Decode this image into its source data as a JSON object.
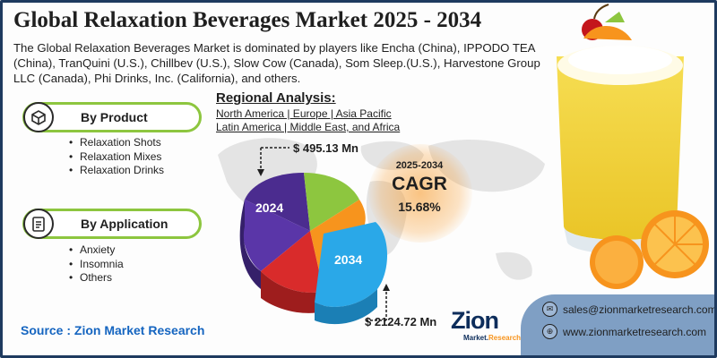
{
  "title": "Global Relaxation Beverages Market 2025 - 2034",
  "description": "The Global Relaxation Beverages Market is dominated by players like Encha (China), IPPODO TEA (China), TranQuini (U.S.), Chillbev (U.S.), Slow Cow (Canada), Som Sleep.(U.S.), Harvestone Group LLC (Canada), Phi Drinks, Inc. (California), and others.",
  "segments": [
    {
      "label": "By Product",
      "icon": "box-icon",
      "items": [
        "Relaxation Shots",
        "Relaxation Mixes",
        "Relaxation Drinks"
      ]
    },
    {
      "label": "By Application",
      "icon": "clipboard-icon",
      "items": [
        "Anxiety",
        "Insomnia",
        "Others"
      ]
    }
  ],
  "source": "Source : Zion Market Research",
  "regional": {
    "title": "Regional Analysis:",
    "line1": "North America | Europe | Asia Pacific",
    "line2": "Latin America | Middle East, and Africa"
  },
  "pie": {
    "year_start": "2024",
    "year_end": "2034",
    "value_start": "$ 495.13 Mn",
    "value_end": "$ 2124.72 Mn",
    "colors": {
      "purple": "#4b2c8f",
      "red": "#d92b2b",
      "orange": "#f7941d",
      "green": "#8dc63f",
      "cyan": "#2aa8e8"
    }
  },
  "cagr": {
    "years": "2025-2034",
    "label": "CAGR",
    "value": "15.68%"
  },
  "contact": {
    "email": "sales@zionmarketresearch.com",
    "website": "www.zionmarketresearch.com"
  },
  "logo": {
    "brand": "Zion",
    "sub_a": "Market.",
    "sub_b": "Research"
  },
  "colors": {
    "accent_green": "#8dc63f",
    "source_blue": "#1565c0",
    "contact_bg": "#7f9fc4",
    "cagr_glow": "#f7941d"
  }
}
